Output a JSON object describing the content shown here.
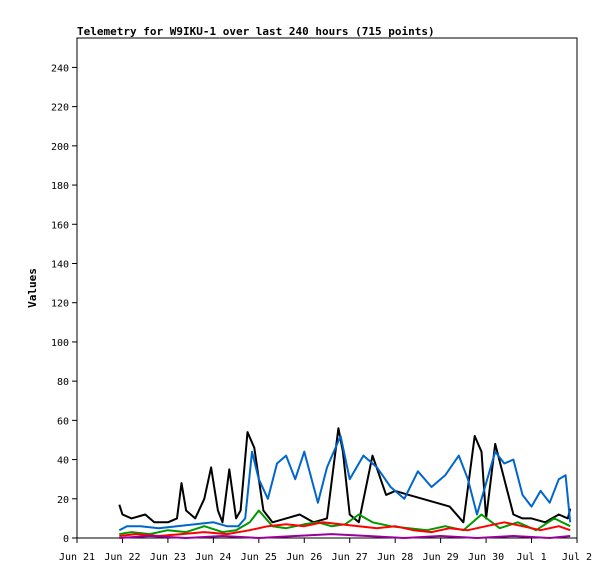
{
  "chart_data": {
    "type": "line",
    "title": "Telemetry for W9IKU-1 over last 240 hours (715 points)",
    "xlabel": "",
    "ylabel": "Values",
    "ylim": [
      0,
      255
    ],
    "y_ticks": [
      0,
      20,
      40,
      60,
      80,
      100,
      120,
      140,
      160,
      180,
      200,
      220,
      240
    ],
    "x_ticks": [
      "Jun 21",
      "Jun 22",
      "Jun 23",
      "Jun 24",
      "Jun 25",
      "Jun 26",
      "Jun 27",
      "Jun 28",
      "Jun 29",
      "Jun 30",
      "Jul 1",
      "Jul 2"
    ],
    "x_range_days": [
      0,
      11
    ],
    "grid": false,
    "legend": "none",
    "series": [
      {
        "color": "#000000",
        "x": [
          0.93,
          1.0,
          1.2,
          1.5,
          1.7,
          2.0,
          2.2,
          2.3,
          2.4,
          2.6,
          2.8,
          2.95,
          3.1,
          3.2,
          3.35,
          3.5,
          3.6,
          3.75,
          3.9,
          4.1,
          4.3,
          4.6,
          4.9,
          5.2,
          5.5,
          5.75,
          5.85,
          6.0,
          6.2,
          6.5,
          6.8,
          7.0,
          7.3,
          7.6,
          7.9,
          8.2,
          8.5,
          8.75,
          8.9,
          9.0,
          9.2,
          9.4,
          9.6,
          9.8,
          10.0,
          10.3,
          10.6,
          10.8,
          10.85
        ],
        "y": [
          17,
          12,
          10,
          12,
          8,
          8,
          10,
          28,
          14,
          10,
          20,
          36,
          14,
          8,
          35,
          10,
          14,
          54,
          46,
          14,
          8,
          10,
          12,
          8,
          10,
          56,
          44,
          12,
          8,
          42,
          22,
          24,
          22,
          20,
          18,
          16,
          8,
          52,
          44,
          10,
          48,
          30,
          12,
          10,
          10,
          8,
          12,
          10,
          15
        ]
      },
      {
        "color": "#0066cc",
        "x": [
          0.93,
          1.1,
          1.4,
          1.8,
          2.2,
          2.6,
          3.0,
          3.3,
          3.55,
          3.7,
          3.85,
          4.0,
          4.2,
          4.4,
          4.6,
          4.8,
          5.0,
          5.3,
          5.5,
          5.8,
          6.0,
          6.3,
          6.6,
          6.9,
          7.2,
          7.5,
          7.8,
          8.1,
          8.4,
          8.6,
          8.8,
          9.0,
          9.2,
          9.4,
          9.6,
          9.8,
          10.0,
          10.2,
          10.4,
          10.6,
          10.75,
          10.85
        ],
        "y": [
          4,
          6,
          6,
          5,
          6,
          7,
          8,
          6,
          6,
          10,
          44,
          30,
          20,
          38,
          42,
          30,
          44,
          18,
          36,
          52,
          30,
          42,
          36,
          26,
          20,
          34,
          26,
          32,
          42,
          30,
          12,
          28,
          44,
          38,
          40,
          22,
          16,
          24,
          18,
          30,
          32,
          8
        ]
      },
      {
        "color": "#009900",
        "x": [
          0.93,
          1.2,
          1.6,
          2.0,
          2.4,
          2.8,
          3.2,
          3.5,
          3.8,
          4.0,
          4.3,
          4.6,
          5.0,
          5.3,
          5.6,
          5.9,
          6.2,
          6.5,
          6.9,
          7.3,
          7.7,
          8.1,
          8.5,
          8.9,
          9.3,
          9.7,
          10.1,
          10.5,
          10.85
        ],
        "y": [
          2,
          3,
          2,
          4,
          3,
          6,
          3,
          4,
          8,
          14,
          6,
          5,
          7,
          8,
          6,
          7,
          12,
          8,
          6,
          5,
          4,
          6,
          4,
          12,
          5,
          8,
          4,
          10,
          6
        ]
      },
      {
        "color": "#ff0000",
        "x": [
          0.93,
          1.3,
          1.8,
          2.3,
          2.8,
          3.3,
          3.8,
          4.2,
          4.6,
          5.0,
          5.4,
          5.8,
          6.2,
          6.6,
          7.0,
          7.4,
          7.8,
          8.2,
          8.6,
          9.0,
          9.4,
          9.8,
          10.2,
          10.6,
          10.85
        ],
        "y": [
          1,
          2,
          1,
          2,
          3,
          2,
          4,
          6,
          7,
          6,
          8,
          7,
          6,
          5,
          6,
          4,
          3,
          5,
          4,
          6,
          8,
          6,
          4,
          6,
          4
        ]
      },
      {
        "color": "#990099",
        "x": [
          0.93,
          1.6,
          2.4,
          3.2,
          4.0,
          4.8,
          5.6,
          6.4,
          7.2,
          8.0,
          8.8,
          9.6,
          10.4,
          10.85
        ],
        "y": [
          0,
          1,
          0,
          1,
          0,
          1,
          2,
          1,
          0,
          1,
          0,
          1,
          0,
          1
        ]
      }
    ]
  }
}
